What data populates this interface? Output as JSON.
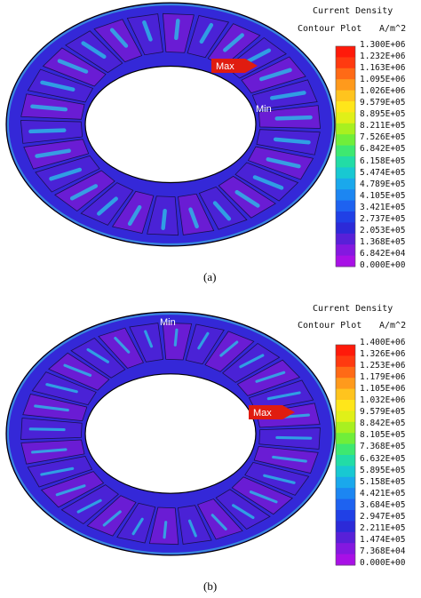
{
  "panels": [
    {
      "caption": "(a)",
      "legend_title_1": "Current Density",
      "legend_title_2": "Contour Plot",
      "legend_unit": "A/m^2",
      "max_label": "Max",
      "min_label": "Min",
      "ticks": [
        "1.300E+06",
        "1.232E+06",
        "1.163E+06",
        "1.095E+06",
        "1.026E+06",
        "9.579E+05",
        "8.895E+05",
        "8.211E+05",
        "7.526E+05",
        "6.842E+05",
        "6.158E+05",
        "5.474E+05",
        "4.789E+05",
        "4.105E+05",
        "3.421E+05",
        "2.737E+05",
        "2.053E+05",
        "1.368E+05",
        "6.842E+04",
        "0.000E+00"
      ]
    },
    {
      "caption": "(b)",
      "legend_title_1": "Current Density",
      "legend_title_2": "Contour Plot",
      "legend_unit": "A/m^2",
      "max_label": "Max",
      "min_label": "Min",
      "ticks": [
        "1.400E+06",
        "1.326E+06",
        "1.253E+06",
        "1.179E+06",
        "1.105E+06",
        "1.032E+06",
        "9.579E+05",
        "8.842E+05",
        "8.105E+05",
        "7.368E+05",
        "6.632E+05",
        "5.895E+05",
        "5.158E+05",
        "4.421E+05",
        "3.684E+05",
        "2.947E+05",
        "2.211E+05",
        "1.474E+05",
        "7.368E+04",
        "0.000E+00"
      ]
    }
  ],
  "colors": {
    "scale": [
      "#ff1a0a",
      "#ff3a10",
      "#ff6a16",
      "#ff9a1c",
      "#ffc41e",
      "#ffe61a",
      "#e0f018",
      "#a8f020",
      "#70ee3a",
      "#3ee870",
      "#22dca6",
      "#18c8d2",
      "#1aa8ec",
      "#1c86f2",
      "#1e62f0",
      "#2040e6",
      "#2c2ad8",
      "#5820d8",
      "#8418e0",
      "#a810e6"
    ],
    "ring_base": "#3428d8",
    "ring_deep": "#6a1cd4",
    "hot": "#28c8e8",
    "max_marker": "#e01c10"
  }
}
